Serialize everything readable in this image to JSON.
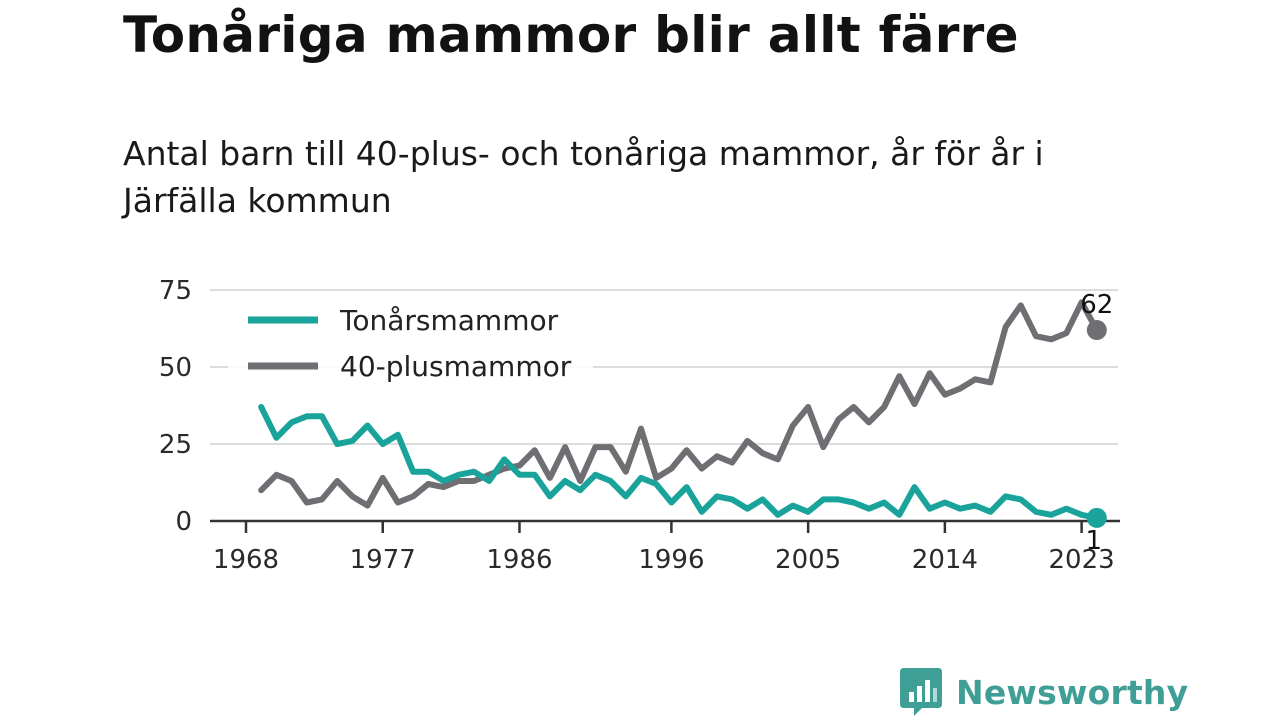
{
  "header": {
    "title": "Tonåriga mammor blir allt färre",
    "subtitle": "Antal barn till 40-plus- och tonåriga mammor, år för år i Järfälla kommun"
  },
  "brand": {
    "name": "Newsworthy",
    "logo_icon": "bar-chart-speech-bubble-icon",
    "color": "#3f9e95"
  },
  "chart_data": {
    "type": "line",
    "x": [
      1969,
      1970,
      1971,
      1972,
      1973,
      1974,
      1975,
      1976,
      1977,
      1978,
      1979,
      1980,
      1981,
      1982,
      1983,
      1984,
      1985,
      1986,
      1987,
      1988,
      1989,
      1990,
      1991,
      1992,
      1993,
      1994,
      1995,
      1996,
      1997,
      1998,
      1999,
      2000,
      2001,
      2002,
      2003,
      2004,
      2005,
      2006,
      2007,
      2008,
      2009,
      2010,
      2011,
      2012,
      2013,
      2014,
      2015,
      2016,
      2017,
      2018,
      2019,
      2020,
      2021,
      2022,
      2023,
      2024
    ],
    "series": [
      {
        "name": "Tonårsmammor",
        "color": "#1aa39a",
        "values": [
          37,
          27,
          32,
          34,
          34,
          25,
          26,
          31,
          25,
          28,
          16,
          16,
          13,
          15,
          16,
          13,
          20,
          15,
          15,
          8,
          13,
          10,
          15,
          13,
          8,
          14,
          12,
          6,
          11,
          3,
          8,
          7,
          4,
          7,
          2,
          5,
          3,
          7,
          7,
          6,
          4,
          6,
          2,
          11,
          4,
          6,
          4,
          5,
          3,
          8,
          7,
          3,
          2,
          4,
          2,
          1
        ]
      },
      {
        "name": "40-plusmammor",
        "color": "#6e6e73",
        "values": [
          10,
          15,
          13,
          6,
          7,
          13,
          8,
          5,
          14,
          6,
          8,
          12,
          11,
          13,
          13,
          15,
          17,
          18,
          23,
          14,
          24,
          13,
          24,
          24,
          16,
          30,
          14,
          17,
          23,
          17,
          21,
          19,
          26,
          22,
          20,
          31,
          37,
          24,
          33,
          37,
          32,
          37,
          47,
          38,
          48,
          41,
          43,
          46,
          45,
          63,
          70,
          60,
          59,
          61,
          71,
          62
        ]
      }
    ],
    "x_ticks": [
      1968,
      1977,
      1986,
      1996,
      2005,
      2014,
      2023
    ],
    "y_ticks": [
      0,
      25,
      50,
      75
    ],
    "xlim": [
      1968,
      2025
    ],
    "ylim": [
      0,
      75
    ],
    "grid": true,
    "legend_position": "top-left",
    "end_labels": {
      "40-plusmammor": "62",
      "Tonårsmammor": "1"
    }
  }
}
